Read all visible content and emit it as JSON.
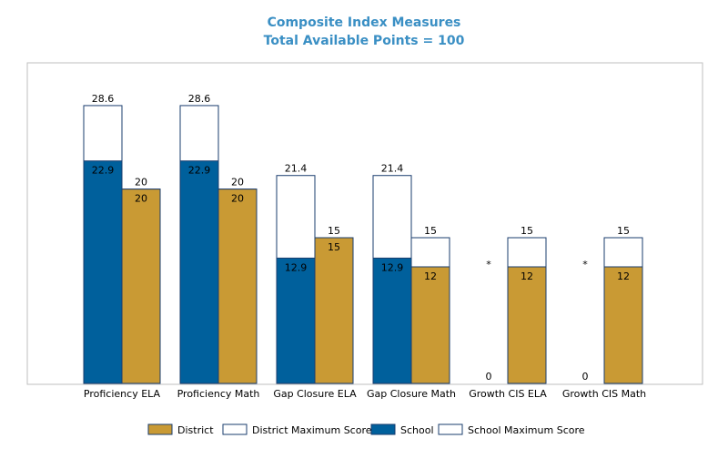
{
  "chart_data": {
    "type": "bar",
    "title": "Composite Index Measures",
    "subtitle": "Total Available Points = 100",
    "categories": [
      "Proficiency ELA",
      "Proficiency Math",
      "Gap Closure ELA",
      "Gap Closure Math",
      "Growth CIS ELA",
      "Growth CIS Math"
    ],
    "ylim": [
      0,
      33
    ],
    "grid": false,
    "legend_position": "bottom",
    "series": [
      {
        "name": "School",
        "values": [
          22.9,
          22.9,
          12.9,
          12.9,
          0,
          0
        ],
        "value_labels": [
          "22.9",
          "22.9",
          "12.9",
          "12.9",
          "0",
          "0"
        ],
        "max_values": [
          28.6,
          28.6,
          21.4,
          21.4,
          null,
          null
        ],
        "max_labels": [
          "28.6",
          "28.6",
          "21.4",
          "21.4",
          "*",
          "*"
        ],
        "color": "#00609c"
      },
      {
        "name": "District",
        "values": [
          20,
          20,
          15,
          12,
          12,
          12
        ],
        "value_labels": [
          "20",
          "20",
          "15",
          "12",
          "12",
          "12"
        ],
        "max_values": [
          20,
          20,
          15,
          15,
          15,
          15
        ],
        "max_labels": [
          "20",
          "20",
          "15",
          "15",
          "15",
          "15"
        ],
        "color": "#c99a34"
      }
    ],
    "legend": [
      {
        "label": "District",
        "color": "#c99a34"
      },
      {
        "label": "District Maximum Score",
        "color": "#ffffff"
      },
      {
        "label": "School",
        "color": "#00609c"
      },
      {
        "label": "School Maximum Score",
        "color": "#ffffff"
      }
    ],
    "colors": {
      "title": "#3a8fc4",
      "outline": "#1a3c6e",
      "frame": "#bfbfbf"
    }
  }
}
